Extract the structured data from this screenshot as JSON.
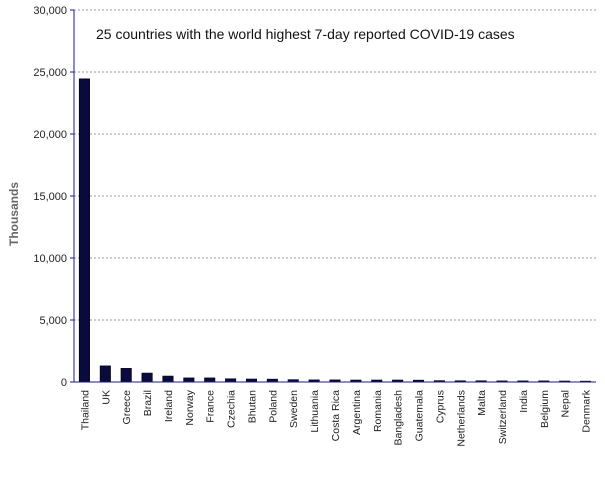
{
  "chart_data": {
    "type": "bar",
    "title": "25 countries with the world highest 7-day reported COVID-19 cases",
    "ylabel": "Thousands",
    "xlabel": "",
    "ylim": [
      0,
      30000
    ],
    "yticks": [
      "0",
      "5,000",
      "10,000",
      "15,000",
      "20,000",
      "25,000",
      "30,000"
    ],
    "grid": true,
    "categories": [
      "Thailand",
      "UK",
      "Greece",
      "Brazil",
      "Ireland",
      "Norway",
      "France",
      "Czechia",
      "Bhutan",
      "Poland",
      "Sweden",
      "Lithuania",
      "Costa Rica",
      "Argentina",
      "Romania",
      "Bangladesh",
      "Guatemala",
      "Cyprus",
      "Netherlands",
      "Malta",
      "Switzerland",
      "India",
      "Belgium",
      "Nepal",
      "Denmark"
    ],
    "values": [
      24450,
      1300,
      1100,
      720,
      480,
      330,
      330,
      260,
      240,
      230,
      190,
      170,
      170,
      160,
      160,
      160,
      150,
      110,
      100,
      100,
      90,
      90,
      90,
      80,
      70
    ],
    "colors": {
      "bar": "#0a0a3c",
      "axis": "#1a1a8c",
      "grid": "#999999"
    }
  }
}
